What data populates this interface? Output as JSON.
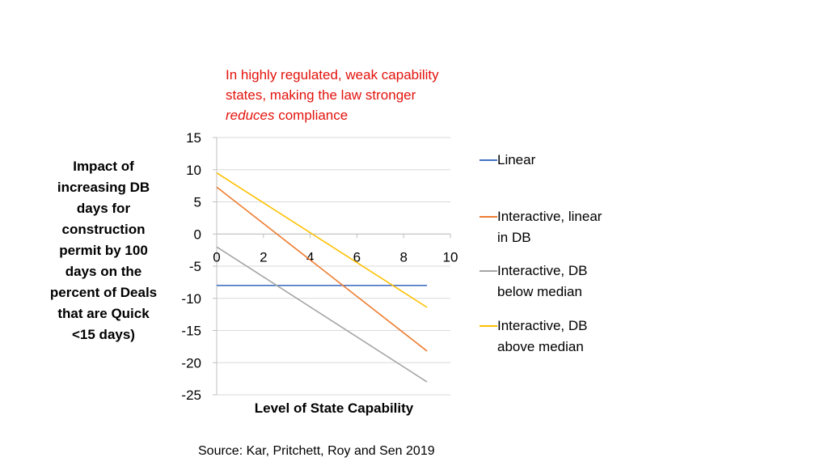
{
  "annotation": {
    "line1": "In highly regulated, weak capability",
    "line2": "states, making the law stronger",
    "emphasis": "reduces",
    "tail": "compliance",
    "color": "#e3120b"
  },
  "y_axis_label": "Impact of increasing DB days for construction permit by 100 days on the percent of Deals that are Quick <15 days)",
  "source": "Source:   Kar, Pritchett, Roy and Sen 2019",
  "chart_data": {
    "type": "line",
    "title": "",
    "xlabel": "Level of State Capability",
    "ylabel": "Impact of increasing DB days for construction permit by 100 days on the percent of Deals that are Quick <15 days)",
    "xlim": [
      0,
      10
    ],
    "ylim": [
      -25,
      15
    ],
    "x_ticks": [
      "0",
      "2",
      "4",
      "6",
      "8",
      "10"
    ],
    "y_ticks": [
      "15",
      "10",
      "5",
      "0",
      "-5",
      "-10",
      "-15",
      "-20",
      "-25"
    ],
    "grid": true,
    "legend_position": "right",
    "series": [
      {
        "name": "Linear",
        "color": "#4472c4",
        "x": [
          0,
          9
        ],
        "y": [
          -8,
          -8
        ]
      },
      {
        "name": "Interactive, linear in DB",
        "color": "#ed7d31",
        "x": [
          0,
          9
        ],
        "y": [
          7.3,
          -18.2
        ]
      },
      {
        "name": "Interactive, DB below median",
        "color": "#a5a5a5",
        "x": [
          0,
          9
        ],
        "y": [
          -2,
          -23
        ]
      },
      {
        "name": "Interactive, DB above median",
        "color": "#ffc000",
        "x": [
          0,
          9
        ],
        "y": [
          9.5,
          -11.4
        ]
      }
    ]
  }
}
